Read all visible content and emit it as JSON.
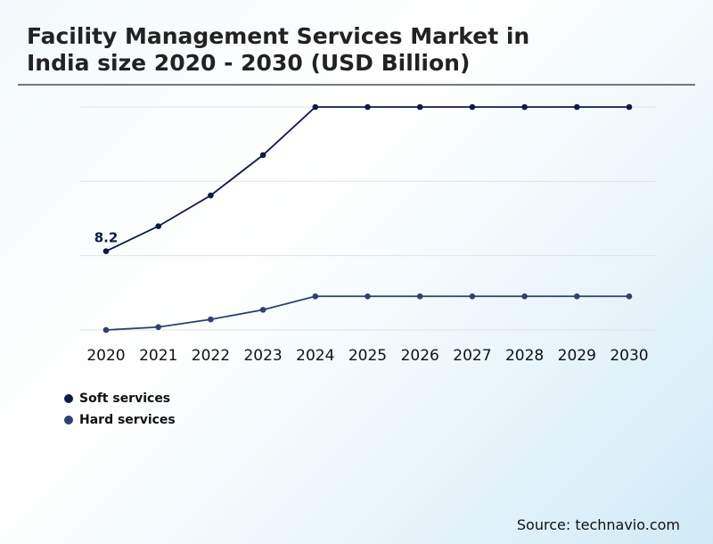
{
  "title_line1": "Facility Management Services Market in",
  "title_line2": "India size 2020 - 2030 (USD Billion)",
  "source": "Source: technavio.com",
  "chart_data": {
    "type": "line",
    "title": "Facility Management Services Market in India size 2020 - 2030 (USD Billion)",
    "categories": [
      "2020",
      "2021",
      "2022",
      "2023",
      "2024",
      "2025",
      "2026",
      "2027",
      "2028",
      "2029",
      "2030"
    ],
    "series": [
      {
        "name": "Soft services",
        "color": "#0d1b45",
        "values": [
          8.2,
          10.8,
          14.0,
          18.2,
          23.2,
          23.2,
          23.2,
          23.2,
          23.2,
          23.2,
          23.2
        ]
      },
      {
        "name": "Hard services",
        "color": "#2c4170",
        "values": [
          0,
          0.3,
          1.1,
          2.1,
          3.5,
          3.5,
          3.5,
          3.5,
          3.5,
          3.5,
          3.5
        ]
      }
    ],
    "data_labels": [
      {
        "series": "Soft services",
        "category": "2020",
        "text": "8.2"
      }
    ],
    "ylim": [
      0,
      23.2
    ],
    "y_axis_labels": false,
    "grid": true,
    "legend_position": "bottom-left"
  }
}
